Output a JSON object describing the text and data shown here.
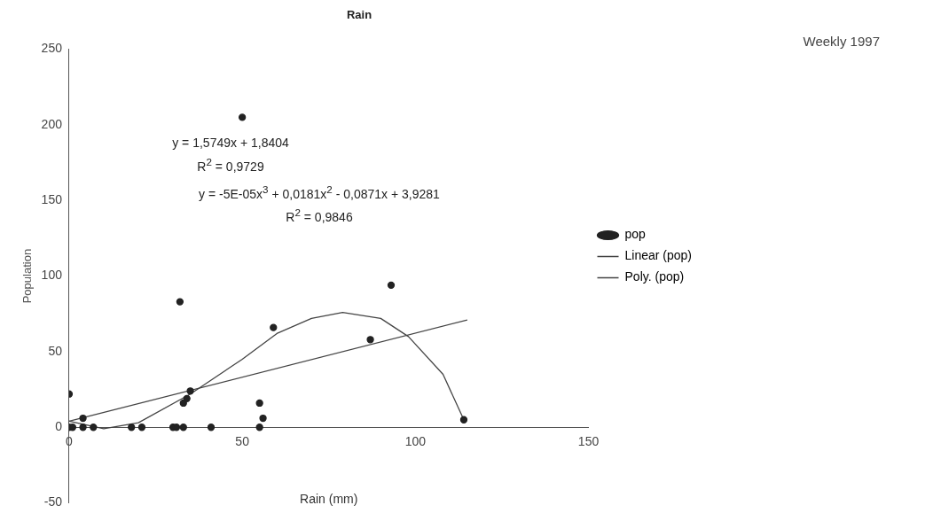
{
  "chart_data": {
    "type": "scatter",
    "title": "Rain",
    "subtitle": "Weekly 1997",
    "xlabel": "Rain (mm)",
    "ylabel": "Population",
    "annotations": [
      "y = 1,5749x + 1,8404",
      "R$^{2}$ = 0,9729",
      "y = -5E-05x$^{3}$ + 0,0181x$^{2}$ - 0,0871x + 3,9281",
      "R$^{2}$ = 0,9846"
    ],
    "xlim": [
      0,
      150
    ],
    "xticks": [
      0,
      50,
      100,
      150
    ],
    "ylim": [
      -50,
      250
    ],
    "yticks": [
      -50,
      0,
      50,
      100,
      150,
      200,
      250
    ],
    "legend": "right",
    "marker": "circle",
    "series": [
      {
        "name": "pop",
        "type": "scatter",
        "color": "#222222",
        "x": [
          0,
          0,
          1,
          4,
          4,
          7,
          18,
          21,
          30,
          31,
          33,
          32,
          34,
          33,
          35,
          41,
          50,
          55,
          56,
          55,
          59,
          87,
          93,
          114
        ],
        "values": [
          22,
          0,
          0,
          6,
          0,
          0,
          0,
          0,
          0,
          0,
          0,
          83,
          19,
          16,
          24,
          0,
          205,
          16,
          6,
          0,
          66,
          58,
          94,
          5
        ]
      },
      {
        "name": "Linear (pop)",
        "type": "line",
        "marker": "none",
        "color": "#444444",
        "x": [
          0,
          115
        ],
        "values": [
          4,
          71
        ]
      },
      {
        "name": "Poly. (pop)",
        "type": "line",
        "marker": "none",
        "color": "#444444",
        "x": [
          0,
          10,
          20,
          35,
          50,
          60,
          70,
          79,
          90,
          98,
          108,
          114
        ],
        "values": [
          4,
          -1,
          3,
          22,
          45,
          62,
          72,
          76,
          72,
          60,
          35,
          5
        ]
      }
    ]
  }
}
